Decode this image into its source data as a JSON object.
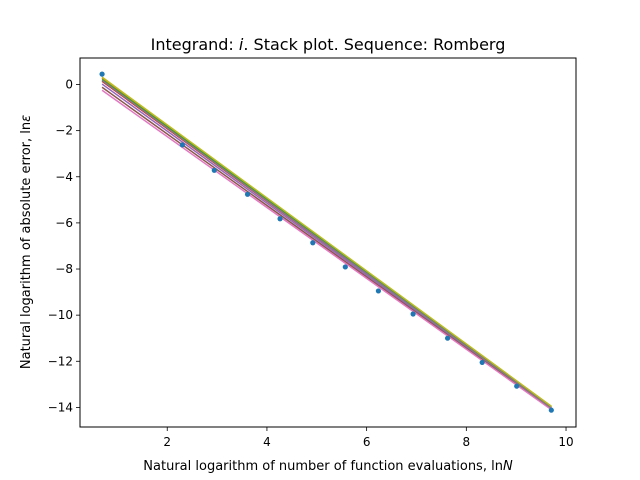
{
  "chart_data": {
    "type": "line",
    "title_prefix": "Integrand: ",
    "title_italic": "i",
    "title_suffix": ". Stack plot. Sequence: Romberg",
    "xlabel_text": "Natural logarithm of number of function evaluations, ln",
    "xlabel_italic": "N",
    "ylabel_text": "Natural logarithm of absolute error, ln",
    "ylabel_symbol": "ε",
    "xlim": [
      0.25,
      10.2
    ],
    "ylim": [
      -14.85,
      1.15
    ],
    "xticks": [
      2,
      4,
      6,
      8,
      10
    ],
    "yticks": [
      0,
      -2,
      -4,
      -6,
      -8,
      -10,
      -12,
      -14
    ],
    "grid": false,
    "scatter": {
      "color": "#1f77b4",
      "x": [
        0.693,
        2.303,
        2.944,
        3.611,
        4.263,
        4.92,
        5.572,
        6.236,
        6.932,
        7.624,
        8.318,
        9.011,
        9.705
      ],
      "y": [
        0.45,
        -2.62,
        -3.72,
        -4.76,
        -5.82,
        -6.86,
        -7.91,
        -8.95,
        -9.95,
        -11.0,
        -12.05,
        -13.08,
        -14.12
      ]
    },
    "lines": [
      {
        "color": "#1f77b4",
        "x": [
          0.693,
          9.705
        ],
        "y": [
          0.3,
          -14.0
        ]
      },
      {
        "color": "#ff7f0e",
        "x": [
          0.693,
          9.705
        ],
        "y": [
          0.28,
          -13.98
        ]
      },
      {
        "color": "#2ca02c",
        "x": [
          0.693,
          9.705
        ],
        "y": [
          0.22,
          -13.96
        ]
      },
      {
        "color": "#d62728",
        "x": [
          0.693,
          9.705
        ],
        "y": [
          0.14,
          -14.02
        ]
      },
      {
        "color": "#9467bd",
        "x": [
          0.693,
          9.705
        ],
        "y": [
          0.02,
          -14.05
        ]
      },
      {
        "color": "#8c564b",
        "x": [
          0.693,
          9.705
        ],
        "y": [
          -0.12,
          -14.08
        ]
      },
      {
        "color": "#e377c2",
        "x": [
          0.693,
          9.705
        ],
        "y": [
          -0.25,
          -14.1
        ]
      },
      {
        "color": "#7f7f7f",
        "x": [
          0.693,
          9.705
        ],
        "y": [
          0.18,
          -14.03
        ]
      },
      {
        "color": "#bcbd22",
        "x": [
          0.693,
          9.705
        ],
        "y": [
          0.32,
          -13.95
        ]
      }
    ]
  }
}
